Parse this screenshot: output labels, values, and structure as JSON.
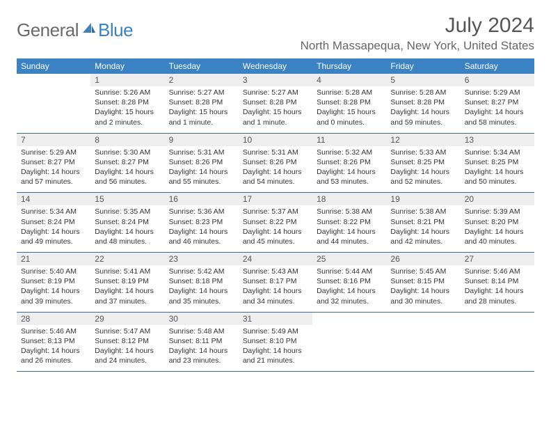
{
  "brand": {
    "part1": "General",
    "part2": "Blue"
  },
  "title": "July 2024",
  "location": "North Massapequa, New York, United States",
  "colors": {
    "header_bg": "#3a82c4",
    "header_text": "#ffffff",
    "daynum_bg": "#eeeeee",
    "rule": "#3a6a9a",
    "logo_gray": "#6a6a6a",
    "logo_blue": "#3a82c4"
  },
  "weekdays": [
    "Sunday",
    "Monday",
    "Tuesday",
    "Wednesday",
    "Thursday",
    "Friday",
    "Saturday"
  ],
  "first_weekday_index": 1,
  "days": [
    {
      "n": 1,
      "sunrise": "5:26 AM",
      "sunset": "8:28 PM",
      "daylight": "15 hours and 2 minutes."
    },
    {
      "n": 2,
      "sunrise": "5:27 AM",
      "sunset": "8:28 PM",
      "daylight": "15 hours and 1 minute."
    },
    {
      "n": 3,
      "sunrise": "5:27 AM",
      "sunset": "8:28 PM",
      "daylight": "15 hours and 1 minute."
    },
    {
      "n": 4,
      "sunrise": "5:28 AM",
      "sunset": "8:28 PM",
      "daylight": "15 hours and 0 minutes."
    },
    {
      "n": 5,
      "sunrise": "5:28 AM",
      "sunset": "8:28 PM",
      "daylight": "14 hours and 59 minutes."
    },
    {
      "n": 6,
      "sunrise": "5:29 AM",
      "sunset": "8:27 PM",
      "daylight": "14 hours and 58 minutes."
    },
    {
      "n": 7,
      "sunrise": "5:29 AM",
      "sunset": "8:27 PM",
      "daylight": "14 hours and 57 minutes."
    },
    {
      "n": 8,
      "sunrise": "5:30 AM",
      "sunset": "8:27 PM",
      "daylight": "14 hours and 56 minutes."
    },
    {
      "n": 9,
      "sunrise": "5:31 AM",
      "sunset": "8:26 PM",
      "daylight": "14 hours and 55 minutes."
    },
    {
      "n": 10,
      "sunrise": "5:31 AM",
      "sunset": "8:26 PM",
      "daylight": "14 hours and 54 minutes."
    },
    {
      "n": 11,
      "sunrise": "5:32 AM",
      "sunset": "8:26 PM",
      "daylight": "14 hours and 53 minutes."
    },
    {
      "n": 12,
      "sunrise": "5:33 AM",
      "sunset": "8:25 PM",
      "daylight": "14 hours and 52 minutes."
    },
    {
      "n": 13,
      "sunrise": "5:34 AM",
      "sunset": "8:25 PM",
      "daylight": "14 hours and 50 minutes."
    },
    {
      "n": 14,
      "sunrise": "5:34 AM",
      "sunset": "8:24 PM",
      "daylight": "14 hours and 49 minutes."
    },
    {
      "n": 15,
      "sunrise": "5:35 AM",
      "sunset": "8:24 PM",
      "daylight": "14 hours and 48 minutes."
    },
    {
      "n": 16,
      "sunrise": "5:36 AM",
      "sunset": "8:23 PM",
      "daylight": "14 hours and 46 minutes."
    },
    {
      "n": 17,
      "sunrise": "5:37 AM",
      "sunset": "8:22 PM",
      "daylight": "14 hours and 45 minutes."
    },
    {
      "n": 18,
      "sunrise": "5:38 AM",
      "sunset": "8:22 PM",
      "daylight": "14 hours and 44 minutes."
    },
    {
      "n": 19,
      "sunrise": "5:38 AM",
      "sunset": "8:21 PM",
      "daylight": "14 hours and 42 minutes."
    },
    {
      "n": 20,
      "sunrise": "5:39 AM",
      "sunset": "8:20 PM",
      "daylight": "14 hours and 40 minutes."
    },
    {
      "n": 21,
      "sunrise": "5:40 AM",
      "sunset": "8:19 PM",
      "daylight": "14 hours and 39 minutes."
    },
    {
      "n": 22,
      "sunrise": "5:41 AM",
      "sunset": "8:19 PM",
      "daylight": "14 hours and 37 minutes."
    },
    {
      "n": 23,
      "sunrise": "5:42 AM",
      "sunset": "8:18 PM",
      "daylight": "14 hours and 35 minutes."
    },
    {
      "n": 24,
      "sunrise": "5:43 AM",
      "sunset": "8:17 PM",
      "daylight": "14 hours and 34 minutes."
    },
    {
      "n": 25,
      "sunrise": "5:44 AM",
      "sunset": "8:16 PM",
      "daylight": "14 hours and 32 minutes."
    },
    {
      "n": 26,
      "sunrise": "5:45 AM",
      "sunset": "8:15 PM",
      "daylight": "14 hours and 30 minutes."
    },
    {
      "n": 27,
      "sunrise": "5:46 AM",
      "sunset": "8:14 PM",
      "daylight": "14 hours and 28 minutes."
    },
    {
      "n": 28,
      "sunrise": "5:46 AM",
      "sunset": "8:13 PM",
      "daylight": "14 hours and 26 minutes."
    },
    {
      "n": 29,
      "sunrise": "5:47 AM",
      "sunset": "8:12 PM",
      "daylight": "14 hours and 24 minutes."
    },
    {
      "n": 30,
      "sunrise": "5:48 AM",
      "sunset": "8:11 PM",
      "daylight": "14 hours and 23 minutes."
    },
    {
      "n": 31,
      "sunrise": "5:49 AM",
      "sunset": "8:10 PM",
      "daylight": "14 hours and 21 minutes."
    }
  ],
  "labels": {
    "sunrise": "Sunrise:",
    "sunset": "Sunset:",
    "daylight": "Daylight:"
  }
}
